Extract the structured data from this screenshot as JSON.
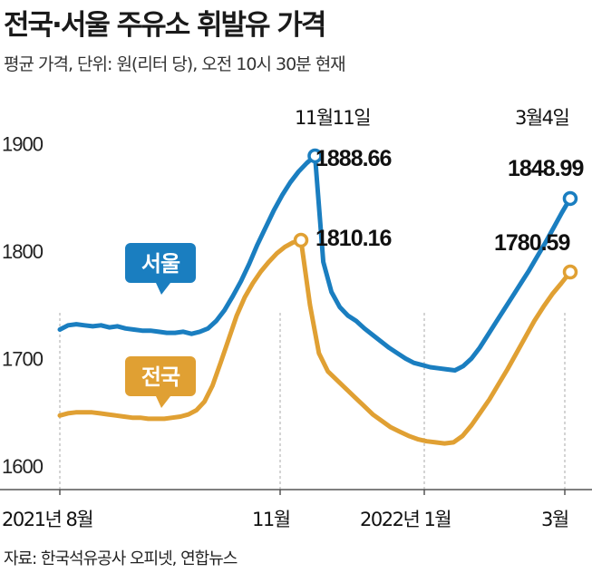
{
  "title": "전국·서울 주유소 휘발유 가격",
  "subtitle": "평균 가격, 단위: 원(리터 당), 오전 10시 30분 현재",
  "source": "자료: 한국석유공사 오피넷, 연합뉴스",
  "colors": {
    "seoul": "#1a7ec0",
    "national": "#e0a033",
    "grid": "#aaaaaa",
    "axis": "#555555"
  },
  "chart_data": {
    "type": "line",
    "x_tick_labels": [
      "2021년 8월",
      "11월",
      "2022년 1월",
      "3월"
    ],
    "y_ticks": [
      1600,
      1700,
      1800,
      1900
    ],
    "ylim": [
      1560,
      1960
    ],
    "series": [
      {
        "name": "서울",
        "values": [
          1727,
          1731,
          1732,
          1731,
          1730,
          1731,
          1729,
          1730,
          1728,
          1727,
          1726,
          1726,
          1725,
          1724,
          1724,
          1725,
          1723,
          1725,
          1728,
          1735,
          1745,
          1758,
          1772,
          1788,
          1806,
          1822,
          1838,
          1852,
          1864,
          1874,
          1882,
          1888.66,
          1790,
          1762,
          1748,
          1740,
          1735,
          1728,
          1722,
          1716,
          1710,
          1705,
          1700,
          1696,
          1694,
          1692,
          1691,
          1690,
          1689,
          1693,
          1700,
          1710,
          1722,
          1734,
          1746,
          1758,
          1770,
          1782,
          1795,
          1808,
          1822,
          1836,
          1848.99
        ]
      },
      {
        "name": "전국",
        "values": [
          1647,
          1649,
          1650,
          1650,
          1650,
          1649,
          1648,
          1647,
          1646,
          1645,
          1645,
          1644,
          1644,
          1644,
          1645,
          1646,
          1648,
          1652,
          1660,
          1675,
          1696,
          1718,
          1740,
          1757,
          1770,
          1781,
          1790,
          1798,
          1804,
          1808,
          1810.16,
          1750,
          1705,
          1688,
          1680,
          1672,
          1664,
          1656,
          1648,
          1642,
          1636,
          1632,
          1628,
          1625,
          1623,
          1622,
          1621,
          1622,
          1628,
          1638,
          1650,
          1662,
          1676,
          1690,
          1705,
          1720,
          1735,
          1748,
          1760,
          1770,
          1780.59
        ]
      }
    ],
    "annotations": [
      {
        "label": "11월11일",
        "series": "서울",
        "value": "1888.66"
      },
      {
        "label": "",
        "series": "전국",
        "value": "1810.16"
      },
      {
        "label": "3월4일",
        "series": "서울",
        "value": "1848.99"
      },
      {
        "label": "",
        "series": "전국",
        "value": "1780.59"
      }
    ],
    "series_tags": [
      "서울",
      "전국"
    ]
  }
}
